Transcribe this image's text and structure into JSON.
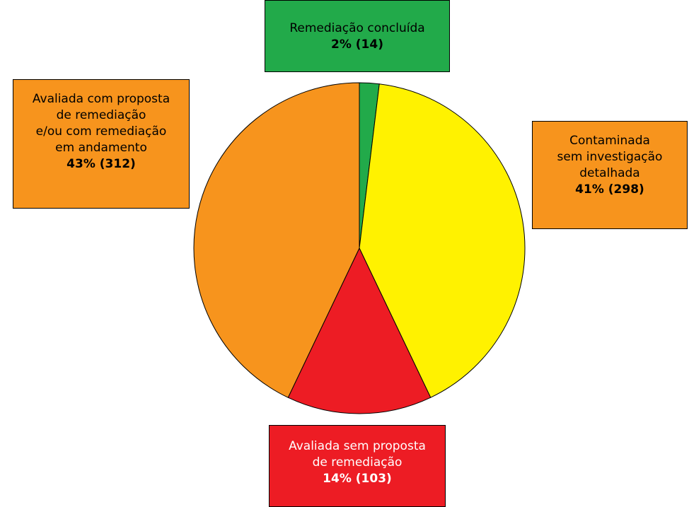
{
  "chart_data": {
    "type": "pie",
    "title": "",
    "start_angle_deg": 0,
    "direction": "clockwise",
    "slices": [
      {
        "key": "done",
        "label": "Remediação concluída",
        "value_text": "2% (14)",
        "percent": 2,
        "count": 14,
        "color": "#22aa4a",
        "label_color": "#000000"
      },
      {
        "key": "contam",
        "label": "Contaminada sem investigação detalhada",
        "value_text": "41% (298)",
        "percent": 41,
        "count": 298,
        "color": "#fff200",
        "label_color": "#000000"
      },
      {
        "key": "semproposta",
        "label": "Avaliada sem proposta de remediação",
        "value_text": "14% (103)",
        "percent": 14,
        "count": 103,
        "color": "#ed1c24",
        "label_color": "#ffffff"
      },
      {
        "key": "proposta",
        "label": "Avaliada com proposta de remediação e/ou com remediação em andamento",
        "value_text": "43% (312)",
        "percent": 43,
        "count": 312,
        "color": "#f7941d",
        "label_color": "#000000"
      }
    ]
  },
  "labels": {
    "done": {
      "lines": [
        "Remediação concluída"
      ],
      "value": "2% (14)",
      "box_color": "#22aa4a"
    },
    "contam": {
      "lines": [
        "Contaminada",
        "sem investigação",
        "detalhada"
      ],
      "value": "41% (298)",
      "box_color": "#f7941d"
    },
    "proposta": {
      "lines": [
        "Avaliada com proposta",
        "de remediação",
        "e/ou com remediação",
        "em andamento"
      ],
      "value": "43% (312)",
      "box_color": "#f7941d"
    },
    "semproposta": {
      "lines": [
        "Avaliada sem proposta",
        "de remediação"
      ],
      "value": "14% (103)",
      "box_color": "#ed1c24"
    }
  }
}
